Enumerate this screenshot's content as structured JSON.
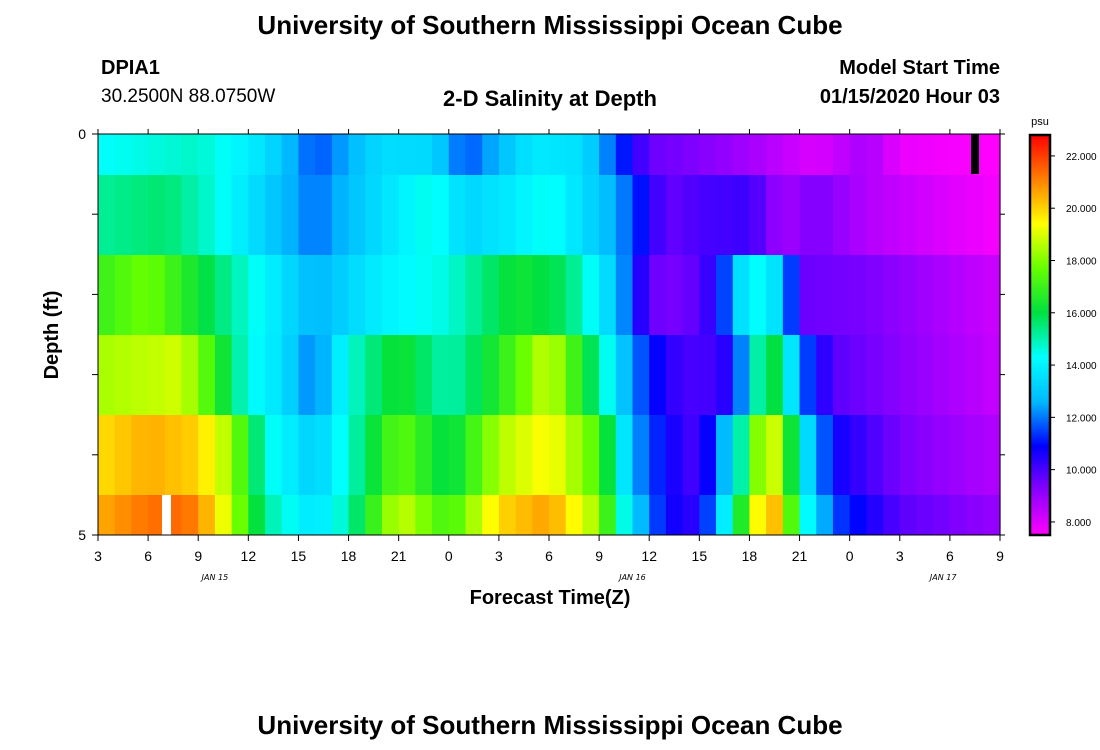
{
  "header": {
    "title": "University of Southern Mississippi Ocean Cube",
    "station_id": "DPIA1",
    "coords": "30.2500N 88.0750W",
    "subtitle": "2-D Salinity at Depth",
    "model_start_label": "Model Start Time",
    "model_start_value": "01/15/2020 Hour 03"
  },
  "footer": {
    "title": "University of Southern Mississippi Ocean Cube"
  },
  "chart_data": {
    "type": "heatmap",
    "title": "2-D Salinity at Depth",
    "xlabel": "Forecast Time(Z)",
    "ylabel": "Depth (ft)",
    "x_tick_labels": [
      "3",
      "6",
      "9",
      "12",
      "15",
      "18",
      "21",
      "0",
      "3",
      "6",
      "9",
      "12",
      "15",
      "18",
      "21",
      "0",
      "3",
      "6",
      "9"
    ],
    "date_labels": [
      {
        "label": "JAN 15",
        "tick_index": 3.5
      },
      {
        "label": "JAN 16",
        "tick_index": 16.0
      },
      {
        "label": "JAN 17",
        "tick_index": 25.3
      }
    ],
    "y_tick_labels": [
      {
        "value": 0,
        "label": "0"
      },
      {
        "value": 5,
        "label": "5"
      }
    ],
    "ylim": [
      0,
      5
    ],
    "xlim_hours": [
      0,
      54
    ],
    "colorbar": {
      "unit": "psu",
      "min": 7.5,
      "max": 22.8,
      "tick_values": [
        8,
        10,
        12,
        14,
        16,
        18,
        20,
        22
      ],
      "tick_labels": [
        "8.000",
        "10.000",
        "12.000",
        "14.000",
        "16.000",
        "18.000",
        "20.000",
        "22.000"
      ]
    },
    "layer_count": 6,
    "colors": [
      "#ff00ff",
      "#8a00ff",
      "#0000ff",
      "#00b8ff",
      "#00ffff",
      "#00e040",
      "#66ff00",
      "#ffff00",
      "#ff8000",
      "#ff0000"
    ],
    "layers_note": "surface to bottom",
    "salinity_keyframes": [
      [
        [
          0,
          14.3
        ],
        [
          6,
          14.8
        ],
        [
          10,
          13.6
        ],
        [
          13,
          11.6
        ],
        [
          17,
          13.5
        ],
        [
          20,
          13.4
        ],
        [
          22,
          11.6
        ],
        [
          26,
          13.8
        ],
        [
          29,
          13.6
        ],
        [
          31,
          11.6
        ],
        [
          33,
          9.6
        ],
        [
          36,
          9.3
        ],
        [
          39,
          8.8
        ],
        [
          43,
          8.0
        ],
        [
          46,
          8.8
        ],
        [
          48,
          7.8
        ],
        [
          54,
          7.5
        ]
      ],
      [
        [
          0,
          15.2
        ],
        [
          4,
          15.6
        ],
        [
          7,
          14.6
        ],
        [
          10,
          13.2
        ],
        [
          13,
          11.9
        ],
        [
          16,
          13.2
        ],
        [
          20,
          14.6
        ],
        [
          22,
          13.3
        ],
        [
          25,
          13.9
        ],
        [
          27,
          14.5
        ],
        [
          31,
          12.5
        ],
        [
          34,
          9.6
        ],
        [
          36,
          10.0
        ],
        [
          39,
          10.2
        ],
        [
          41,
          8.8
        ],
        [
          43,
          9.4
        ],
        [
          46,
          8.6
        ],
        [
          54,
          7.6
        ]
      ],
      [
        [
          0,
          16.9
        ],
        [
          3,
          17.8
        ],
        [
          6,
          16.2
        ],
        [
          9,
          14.6
        ],
        [
          13,
          12.6
        ],
        [
          17,
          14.0
        ],
        [
          21,
          14.6
        ],
        [
          25,
          16.3
        ],
        [
          28,
          15.7
        ],
        [
          31,
          13.0
        ],
        [
          33,
          9.6
        ],
        [
          35,
          9.4
        ],
        [
          37,
          10.5
        ],
        [
          39,
          14.6
        ],
        [
          41,
          13.3
        ],
        [
          42,
          9.6
        ],
        [
          46,
          9.4
        ],
        [
          54,
          8.2
        ]
      ],
      [
        [
          0,
          18.4
        ],
        [
          5,
          18.9
        ],
        [
          7,
          16.9
        ],
        [
          9,
          14.4
        ],
        [
          11,
          13.6
        ],
        [
          13,
          11.9
        ],
        [
          15,
          14.6
        ],
        [
          18,
          16.4
        ],
        [
          21,
          14.9
        ],
        [
          24,
          16.6
        ],
        [
          27,
          18.9
        ],
        [
          30,
          15.2
        ],
        [
          32,
          12.1
        ],
        [
          34,
          10.4
        ],
        [
          36,
          9.9
        ],
        [
          38,
          10.6
        ],
        [
          40,
          16.6
        ],
        [
          41,
          15.4
        ],
        [
          42,
          12.0
        ],
        [
          44,
          9.8
        ],
        [
          48,
          9.2
        ],
        [
          54,
          8.3
        ]
      ],
      [
        [
          0,
          19.8
        ],
        [
          3,
          20.5
        ],
        [
          6,
          20.0
        ],
        [
          8,
          18.3
        ],
        [
          10,
          14.6
        ],
        [
          13,
          13.1
        ],
        [
          15,
          14.7
        ],
        [
          18,
          17.6
        ],
        [
          21,
          15.8
        ],
        [
          24,
          18.5
        ],
        [
          27,
          19.5
        ],
        [
          30,
          17.3
        ],
        [
          32,
          12.5
        ],
        [
          34,
          10.8
        ],
        [
          36,
          9.9
        ],
        [
          38,
          13.6
        ],
        [
          40,
          19.5
        ],
        [
          41,
          18.1
        ],
        [
          42,
          14.3
        ],
        [
          44,
          10.8
        ],
        [
          48,
          9.4
        ],
        [
          54,
          8.6
        ]
      ],
      [
        [
          0,
          20.5
        ],
        [
          3,
          21.3
        ],
        [
          5,
          21.4
        ],
        [
          6,
          21.0
        ],
        [
          8,
          18.6
        ],
        [
          10,
          15.2
        ],
        [
          13,
          13.6
        ],
        [
          15,
          15.0
        ],
        [
          18,
          18.9
        ],
        [
          21,
          17.0
        ],
        [
          24,
          19.9
        ],
        [
          27,
          20.7
        ],
        [
          30,
          18.2
        ],
        [
          32,
          13.3
        ],
        [
          34,
          10.8
        ],
        [
          36,
          10.3
        ],
        [
          38,
          15.1
        ],
        [
          40,
          20.9
        ],
        [
          41,
          19.6
        ],
        [
          42,
          15.1
        ],
        [
          44,
          11.6
        ],
        [
          48,
          9.8
        ],
        [
          54,
          9.0
        ]
      ]
    ]
  }
}
